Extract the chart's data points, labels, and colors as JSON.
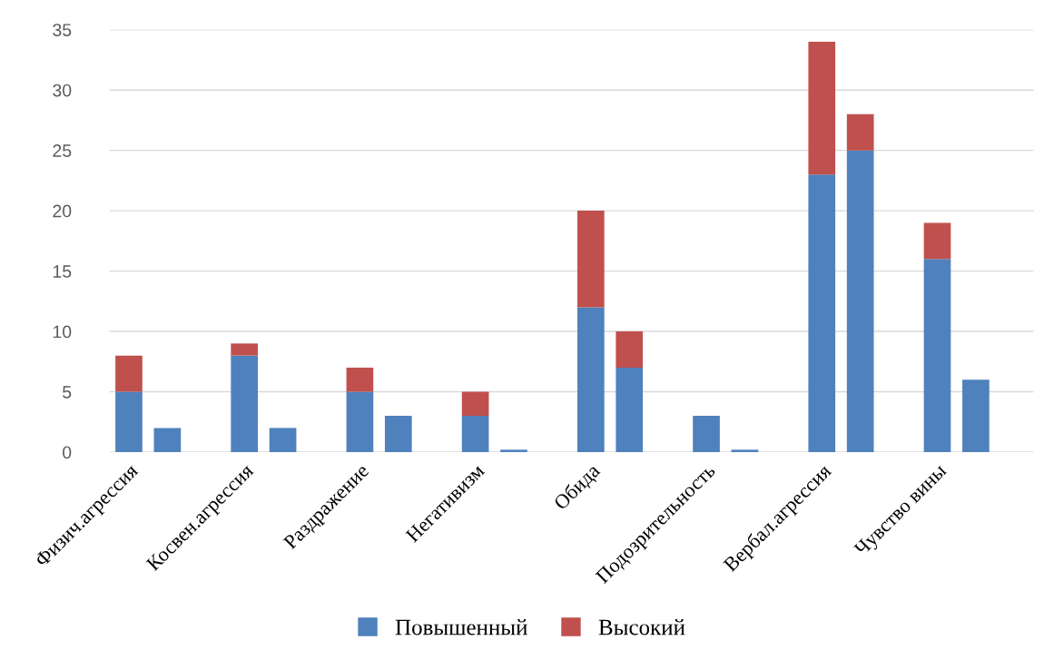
{
  "chart_data": {
    "type": "bar",
    "stacked": true,
    "categories": [
      "Физич.агрессия",
      null,
      null,
      "Косвен.агрессия",
      null,
      null,
      "Раздражение",
      null,
      null,
      "Негативизм",
      null,
      null,
      "Обида",
      null,
      null,
      "Подозрительность",
      null,
      null,
      "Вербал.агрессия",
      null,
      null,
      "Чувство вины",
      null,
      null
    ],
    "series": [
      {
        "name": "Повышенный",
        "color": "#4f81bd",
        "values": [
          5,
          2,
          null,
          8,
          2,
          null,
          5,
          3,
          null,
          3,
          0.2,
          null,
          12,
          7,
          null,
          3,
          0.2,
          null,
          23,
          25,
          null,
          16,
          6,
          null
        ]
      },
      {
        "name": "Высокий",
        "color": "#c0504d",
        "values": [
          3,
          0,
          null,
          1,
          0,
          null,
          2,
          0,
          null,
          2,
          0,
          null,
          8,
          3,
          null,
          0,
          0,
          null,
          11,
          3,
          null,
          3,
          0,
          null
        ]
      }
    ],
    "ylim": [
      0,
      35
    ],
    "yticks": [
      0,
      5,
      10,
      15,
      20,
      25,
      30,
      35
    ],
    "grid": "y",
    "legend": "bottom"
  }
}
